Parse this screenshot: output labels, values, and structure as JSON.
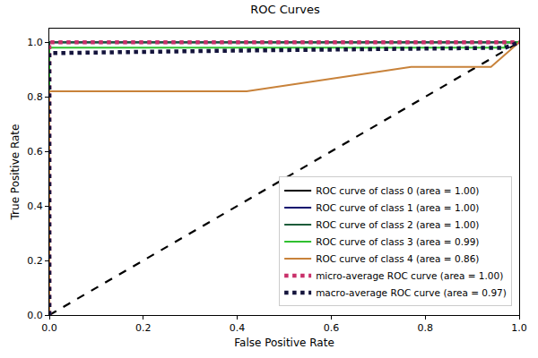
{
  "chart_data": {
    "type": "line",
    "title": "ROC Curves",
    "x_label": "False Positive Rate",
    "y_label": "True Positive Rate",
    "xlim": [
      0,
      1
    ],
    "ylim": [
      0,
      1.05
    ],
    "xticks": [
      {
        "value": 0,
        "label": "0.0"
      },
      0.2,
      0.4,
      0.6,
      0.8,
      {
        "value": 1,
        "label": "1.0"
      }
    ],
    "yticks": [
      {
        "value": 0,
        "label": "0.0"
      },
      0.2,
      0.4,
      0.6,
      0.8,
      {
        "value": 1,
        "label": "1.0"
      }
    ],
    "grid": false,
    "legend": "lower right",
    "series": [
      {
        "name": "ROC curve of class 0 (area = 1.00)",
        "color": "#000000",
        "line_style": "solid",
        "x": [
          0,
          0,
          1
        ],
        "values": [
          0,
          1,
          1
        ]
      },
      {
        "name": "ROC curve of class 1 (area = 1.00)",
        "color": "#0b0b6e",
        "line_style": "solid",
        "x": [
          0,
          0,
          1
        ],
        "values": [
          0,
          1,
          1
        ]
      },
      {
        "name": "ROC curve of class 2 (area = 1.00)",
        "color": "#1d5c3a",
        "line_style": "solid",
        "x": [
          0,
          0,
          1
        ],
        "values": [
          0,
          1,
          1
        ]
      },
      {
        "name": "ROC curve of class 3 (area = 0.99)",
        "color": "#2fc02f",
        "line_style": "solid",
        "x": [
          0,
          0,
          0.97,
          0.97,
          1
        ],
        "values": [
          0,
          0.98,
          0.98,
          1,
          1
        ]
      },
      {
        "name": "ROC curve of class 4 (area = 0.86)",
        "color": "#c8823a",
        "line_style": "solid",
        "x": [
          0,
          0,
          0.42,
          0.77,
          0.94,
          1
        ],
        "values": [
          0,
          0.82,
          0.82,
          0.91,
          0.91,
          1
        ]
      },
      {
        "name": "micro-average ROC curve (area = 1.00)",
        "color": "#c9306a",
        "line_style": "dotted",
        "x": [
          0,
          0,
          1
        ],
        "values": [
          0,
          1,
          1
        ]
      },
      {
        "name": "macro-average ROC curve (area = 0.97)",
        "color": "#14143c",
        "line_style": "dotted",
        "x": [
          0,
          0,
          0.42,
          0.97,
          1
        ],
        "values": [
          0,
          0.96,
          0.97,
          0.98,
          1
        ]
      },
      {
        "color": "#000000",
        "line_style": "dashed",
        "x": [
          0,
          1
        ],
        "values": [
          0,
          1
        ]
      }
    ]
  }
}
